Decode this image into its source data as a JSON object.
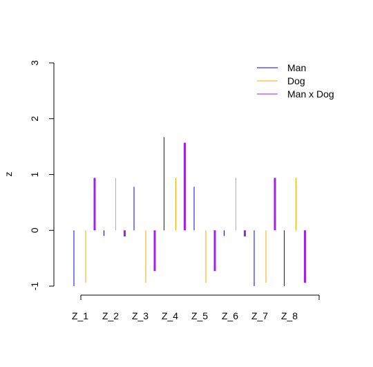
{
  "chart_data": {
    "type": "bar",
    "title": "",
    "xlabel": "",
    "ylabel": "z",
    "ylim": [
      -1,
      3
    ],
    "yticks": [
      -1,
      0,
      1,
      2,
      3
    ],
    "categories": [
      "Z_1",
      "Z_2",
      "Z_3",
      "Z_4",
      "Z_5",
      "Z_6",
      "Z_7",
      "Z_8"
    ],
    "series": [
      {
        "name": "Man",
        "color": "#0000ff",
        "values": [
          -1.0,
          -0.1,
          0.78,
          1.67,
          0.78,
          -0.1,
          -1.0,
          -1.0
        ]
      },
      {
        "name": "Dog",
        "color": "#ffa500",
        "values": [
          -0.94,
          0.94,
          -0.94,
          0.94,
          -0.94,
          0.94,
          -0.94,
          0.94
        ]
      },
      {
        "name": "Man x Dog",
        "color": "#a020f0",
        "values": [
          0.94,
          -0.11,
          -0.73,
          1.57,
          -0.73,
          -0.11,
          0.94,
          -0.94
        ]
      }
    ],
    "legend_position": "top-right",
    "grid": false
  }
}
